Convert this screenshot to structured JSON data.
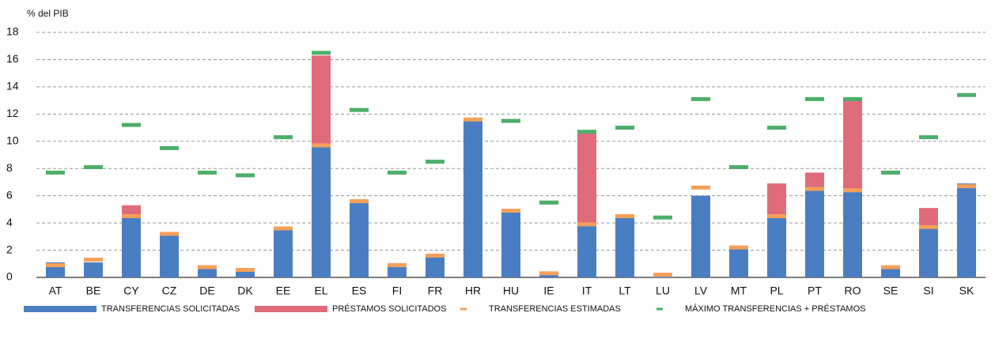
{
  "chart_data": {
    "type": "bar",
    "y_label": "% del PIB",
    "categories": [
      "AT",
      "BE",
      "CY",
      "CZ",
      "DE",
      "DK",
      "EE",
      "EL",
      "ES",
      "FI",
      "FR",
      "HR",
      "HU",
      "IE",
      "IT",
      "LT",
      "LU",
      "LV",
      "MT",
      "PL",
      "PT",
      "RO",
      "SE",
      "SI",
      "SK"
    ],
    "series": [
      {
        "name": "TRANSFERENCIAS SOLICITADAS",
        "color": "#4a7ec2",
        "kind": "stacked-bar",
        "values": [
          1.1,
          1.1,
          4.5,
          3.2,
          0.7,
          0.5,
          3.5,
          9.7,
          5.6,
          0.8,
          1.6,
          11.6,
          4.9,
          0.2,
          3.9,
          4.5,
          0.05,
          6.0,
          2.2,
          4.5,
          6.5,
          6.4,
          0.7,
          3.7,
          6.9
        ]
      },
      {
        "name": "PRÉSTAMOS SOLICITADOS",
        "color": "#e06b7b",
        "kind": "stacked-bar",
        "values": [
          0,
          0,
          0.8,
          0,
          0,
          0,
          0,
          6.6,
          0,
          0,
          0,
          0,
          0,
          0,
          6.7,
          0,
          0,
          0,
          0,
          2.4,
          1.2,
          6.6,
          0,
          1.4,
          0
        ]
      },
      {
        "name": "TRANSFERENCIAS ESTIMADAS",
        "color": "#f5a05a",
        "kind": "marker",
        "values": [
          0.9,
          1.3,
          4.5,
          3.2,
          0.75,
          0.55,
          3.6,
          9.7,
          5.6,
          0.9,
          1.6,
          11.6,
          4.9,
          0.3,
          3.9,
          4.5,
          0.2,
          6.6,
          2.2,
          4.5,
          6.5,
          6.4,
          0.75,
          3.7,
          6.7
        ]
      },
      {
        "name": "MÁXIMO TRANSFERENCIAS + PRÉSTAMOS",
        "color": "#4caf6a",
        "kind": "marker",
        "values": [
          7.7,
          8.1,
          11.2,
          9.5,
          7.7,
          7.5,
          10.3,
          16.5,
          12.3,
          7.7,
          8.5,
          null,
          11.5,
          5.5,
          10.7,
          11.0,
          4.4,
          13.1,
          8.1,
          11.0,
          13.1,
          13.1,
          7.7,
          10.3,
          13.4
        ]
      }
    ],
    "ylim": [
      0,
      18
    ],
    "yticks": [
      0,
      2,
      4,
      6,
      8,
      10,
      12,
      14,
      16,
      18
    ],
    "grid": true
  }
}
